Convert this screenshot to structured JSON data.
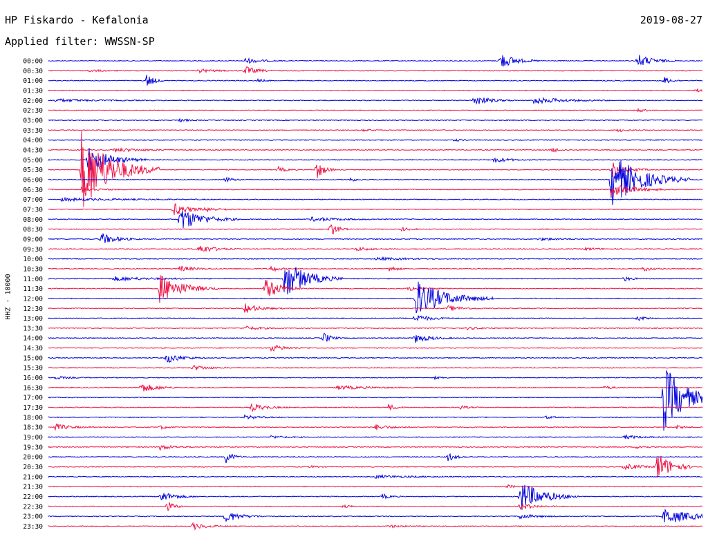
{
  "header": {
    "station": "HP Fiskardo - Kefalonia",
    "date": "2019-08-27",
    "filter": "Applied filter: WWSSN-SP"
  },
  "axis_label": "HHZ - 10000",
  "chart_data": {
    "type": "line",
    "title": "HP Fiskardo - Kefalonia",
    "subtitle": "Applied filter: WWSSN-SP",
    "ylabel": "HHZ - 10000",
    "colors": [
      "#0000dd",
      "#ee1144"
    ],
    "traces": [
      {
        "label": "00:00",
        "events": [
          {
            "t": 0.3,
            "a": 4,
            "d": 0.02
          },
          {
            "t": 0.69,
            "a": 12,
            "d": 0.02
          },
          {
            "t": 0.9,
            "a": 10,
            "d": 0.02
          }
        ]
      },
      {
        "label": "00:30",
        "events": [
          {
            "t": 0.06,
            "a": 2,
            "d": 0.02
          },
          {
            "t": 0.23,
            "a": 3,
            "d": 0.02
          },
          {
            "t": 0.3,
            "a": 7,
            "d": 0.015
          }
        ]
      },
      {
        "label": "01:00",
        "events": [
          {
            "t": 0.15,
            "a": 10,
            "d": 0.01
          },
          {
            "t": 0.32,
            "a": 2,
            "d": 0.01
          },
          {
            "t": 0.94,
            "a": 6,
            "d": 0.01
          }
        ]
      },
      {
        "label": "01:30",
        "events": [
          {
            "t": 0.99,
            "a": 3,
            "d": 0.01
          }
        ]
      },
      {
        "label": "02:00",
        "events": [
          {
            "t": 0.01,
            "a": 2,
            "d": 0.05
          },
          {
            "t": 0.65,
            "a": 8,
            "d": 0.02
          },
          {
            "t": 0.74,
            "a": 5,
            "d": 0.04
          }
        ]
      },
      {
        "label": "02:30",
        "events": [
          {
            "t": 0.9,
            "a": 3,
            "d": 0.01
          }
        ]
      },
      {
        "label": "03:00",
        "events": [
          {
            "t": 0.2,
            "a": 3,
            "d": 0.01
          }
        ]
      },
      {
        "label": "03:30",
        "events": [
          {
            "t": 0.48,
            "a": 2,
            "d": 0.01
          },
          {
            "t": 0.87,
            "a": 3,
            "d": 0.01
          }
        ]
      },
      {
        "label": "04:00",
        "events": [
          {
            "t": 0.62,
            "a": 2,
            "d": 0.01
          }
        ]
      },
      {
        "label": "04:30",
        "events": [
          {
            "t": 0.1,
            "a": 3,
            "d": 0.04
          },
          {
            "t": 0.77,
            "a": 4,
            "d": 0.01
          }
        ]
      },
      {
        "label": "05:00",
        "events": [
          {
            "t": 0.06,
            "a": 20,
            "d": 0.03
          },
          {
            "t": 0.68,
            "a": 4,
            "d": 0.02
          }
        ]
      },
      {
        "label": "05:30",
        "events": [
          {
            "t": 0.05,
            "a": 60,
            "d": 0.04
          },
          {
            "t": 0.35,
            "a": 5,
            "d": 0.01
          },
          {
            "t": 0.41,
            "a": 14,
            "d": 0.01
          },
          {
            "t": 0.86,
            "a": 12,
            "d": 0.02
          }
        ]
      },
      {
        "label": "06:00",
        "events": [
          {
            "t": 0.27,
            "a": 4,
            "d": 0.01
          },
          {
            "t": 0.46,
            "a": 3,
            "d": 0.01
          },
          {
            "t": 0.86,
            "a": 40,
            "d": 0.04
          }
        ]
      },
      {
        "label": "06:30",
        "events": [
          {
            "t": 0.05,
            "a": 4,
            "d": 0.02
          },
          {
            "t": 0.86,
            "a": 10,
            "d": 0.03
          }
        ]
      },
      {
        "label": "07:00",
        "events": [
          {
            "t": 0.02,
            "a": 2,
            "d": 0.08
          }
        ]
      },
      {
        "label": "07:30",
        "events": [
          {
            "t": 0.19,
            "a": 10,
            "d": 0.02
          },
          {
            "t": 0.24,
            "a": 3,
            "d": 0.02
          }
        ]
      },
      {
        "label": "08:00",
        "events": [
          {
            "t": 0.2,
            "a": 18,
            "d": 0.03
          },
          {
            "t": 0.4,
            "a": 3,
            "d": 0.04
          }
        ]
      },
      {
        "label": "08:30",
        "events": [
          {
            "t": 0.43,
            "a": 12,
            "d": 0.01
          },
          {
            "t": 0.54,
            "a": 3,
            "d": 0.01
          }
        ]
      },
      {
        "label": "09:00",
        "events": [
          {
            "t": 0.08,
            "a": 9,
            "d": 0.02
          },
          {
            "t": 0.75,
            "a": 2,
            "d": 0.03
          }
        ]
      },
      {
        "label": "09:30",
        "events": [
          {
            "t": 0.23,
            "a": 7,
            "d": 0.02
          },
          {
            "t": 0.47,
            "a": 3,
            "d": 0.02
          },
          {
            "t": 0.82,
            "a": 2,
            "d": 0.02
          }
        ]
      },
      {
        "label": "10:00",
        "events": [
          {
            "t": 0.5,
            "a": 2,
            "d": 0.05
          }
        ]
      },
      {
        "label": "10:30",
        "events": [
          {
            "t": 0.2,
            "a": 4,
            "d": 0.02
          },
          {
            "t": 0.34,
            "a": 5,
            "d": 0.01
          },
          {
            "t": 0.52,
            "a": 5,
            "d": 0.01
          },
          {
            "t": 0.91,
            "a": 4,
            "d": 0.01
          }
        ]
      },
      {
        "label": "11:00",
        "events": [
          {
            "t": 0.1,
            "a": 3,
            "d": 0.05
          },
          {
            "t": 0.36,
            "a": 30,
            "d": 0.03
          },
          {
            "t": 0.88,
            "a": 4,
            "d": 0.01
          }
        ]
      },
      {
        "label": "11:30",
        "events": [
          {
            "t": 0.17,
            "a": 22,
            "d": 0.03
          },
          {
            "t": 0.33,
            "a": 18,
            "d": 0.02
          },
          {
            "t": 0.55,
            "a": 4,
            "d": 0.02
          }
        ]
      },
      {
        "label": "12:00",
        "events": [
          {
            "t": 0.56,
            "a": 28,
            "d": 0.04
          }
        ]
      },
      {
        "label": "12:30",
        "events": [
          {
            "t": 0.3,
            "a": 7,
            "d": 0.02
          },
          {
            "t": 0.61,
            "a": 4,
            "d": 0.02
          }
        ]
      },
      {
        "label": "13:00",
        "events": [
          {
            "t": 0.56,
            "a": 6,
            "d": 0.02
          },
          {
            "t": 0.9,
            "a": 4,
            "d": 0.01
          }
        ]
      },
      {
        "label": "13:30",
        "events": [
          {
            "t": 0.3,
            "a": 3,
            "d": 0.02
          },
          {
            "t": 0.64,
            "a": 2,
            "d": 0.02
          }
        ]
      },
      {
        "label": "14:00",
        "events": [
          {
            "t": 0.42,
            "a": 9,
            "d": 0.01
          },
          {
            "t": 0.56,
            "a": 7,
            "d": 0.02
          }
        ]
      },
      {
        "label": "14:30",
        "events": [
          {
            "t": 0.34,
            "a": 5,
            "d": 0.02
          }
        ]
      },
      {
        "label": "15:00",
        "events": [
          {
            "t": 0.18,
            "a": 8,
            "d": 0.02
          }
        ]
      },
      {
        "label": "15:30",
        "events": [
          {
            "t": 0.22,
            "a": 4,
            "d": 0.02
          }
        ]
      },
      {
        "label": "16:00",
        "events": [
          {
            "t": 0.01,
            "a": 2,
            "d": 0.02
          },
          {
            "t": 0.59,
            "a": 2,
            "d": 0.01
          }
        ]
      },
      {
        "label": "16:30",
        "events": [
          {
            "t": 0.14,
            "a": 8,
            "d": 0.02
          },
          {
            "t": 0.44,
            "a": 3,
            "d": 0.04
          },
          {
            "t": 0.85,
            "a": 3,
            "d": 0.01
          }
        ]
      },
      {
        "label": "17:00",
        "events": [
          {
            "t": 0.94,
            "a": 50,
            "d": 0.03
          }
        ]
      },
      {
        "label": "17:30",
        "events": [
          {
            "t": 0.31,
            "a": 6,
            "d": 0.02
          },
          {
            "t": 0.52,
            "a": 5,
            "d": 0.01
          },
          {
            "t": 0.63,
            "a": 3,
            "d": 0.01
          }
        ]
      },
      {
        "label": "18:00",
        "events": [
          {
            "t": 0.3,
            "a": 3,
            "d": 0.02
          },
          {
            "t": 0.76,
            "a": 2,
            "d": 0.01
          }
        ]
      },
      {
        "label": "18:30",
        "events": [
          {
            "t": 0.01,
            "a": 5,
            "d": 0.02
          },
          {
            "t": 0.17,
            "a": 3,
            "d": 0.01
          },
          {
            "t": 0.5,
            "a": 4,
            "d": 0.02
          },
          {
            "t": 0.96,
            "a": 3,
            "d": 0.01
          }
        ]
      },
      {
        "label": "19:00",
        "events": [
          {
            "t": 0.34,
            "a": 2,
            "d": 0.02
          },
          {
            "t": 0.88,
            "a": 3,
            "d": 0.02
          }
        ]
      },
      {
        "label": "19:30",
        "events": [
          {
            "t": 0.17,
            "a": 4,
            "d": 0.02
          },
          {
            "t": 0.9,
            "a": 4,
            "d": 0.01
          }
        ]
      },
      {
        "label": "20:00",
        "events": [
          {
            "t": 0.27,
            "a": 10,
            "d": 0.01
          },
          {
            "t": 0.61,
            "a": 7,
            "d": 0.01
          }
        ]
      },
      {
        "label": "20:30",
        "events": [
          {
            "t": 0.4,
            "a": 2,
            "d": 0.01
          },
          {
            "t": 0.88,
            "a": 5,
            "d": 0.02
          },
          {
            "t": 0.93,
            "a": 22,
            "d": 0.02
          }
        ]
      },
      {
        "label": "21:00",
        "events": [
          {
            "t": 0.5,
            "a": 2,
            "d": 0.05
          }
        ]
      },
      {
        "label": "21:30",
        "events": [
          {
            "t": 0.7,
            "a": 3,
            "d": 0.01
          }
        ]
      },
      {
        "label": "22:00",
        "events": [
          {
            "t": 0.17,
            "a": 8,
            "d": 0.02
          },
          {
            "t": 0.51,
            "a": 4,
            "d": 0.01
          },
          {
            "t": 0.72,
            "a": 24,
            "d": 0.03
          }
        ]
      },
      {
        "label": "22:30",
        "events": [
          {
            "t": 0.18,
            "a": 9,
            "d": 0.01
          },
          {
            "t": 0.45,
            "a": 3,
            "d": 0.01
          },
          {
            "t": 0.72,
            "a": 5,
            "d": 0.02
          }
        ]
      },
      {
        "label": "23:00",
        "events": [
          {
            "t": 0.27,
            "a": 9,
            "d": 0.02
          },
          {
            "t": 0.72,
            "a": 4,
            "d": 0.02
          },
          {
            "t": 0.94,
            "a": 12,
            "d": 0.04
          }
        ]
      },
      {
        "label": "23:30",
        "events": [
          {
            "t": 0.22,
            "a": 5,
            "d": 0.02
          },
          {
            "t": 0.52,
            "a": 2,
            "d": 0.02
          }
        ]
      }
    ]
  }
}
